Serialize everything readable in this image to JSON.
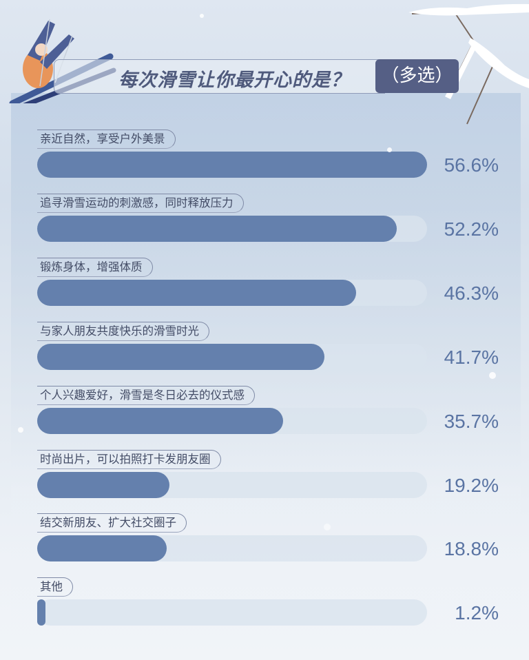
{
  "title": "每次滑雪让你最开心的是？",
  "title_tag": "（多选）",
  "colors": {
    "bar_fill": "#6480ad",
    "track": "#dae3ee",
    "title_tag_bg": "#555f85",
    "percent_text": "#5a74a3"
  },
  "chart_data": {
    "type": "bar",
    "orientation": "horizontal",
    "title": "每次滑雪让你最开心的是？（多选）",
    "categories": [
      "亲近自然，享受户外美景",
      "追寻滑雪运动的刺激感，同时释放压力",
      "锻炼身体，增强体质",
      "与家人朋友共度快乐的滑雪时光",
      "个人兴趣爱好，滑雪是冬日必去的仪式感",
      "时尚出片，可以拍照打卡发朋友圈",
      "结交新朋友、扩大社交圈子",
      "其他"
    ],
    "values": [
      56.6,
      52.2,
      46.3,
      41.7,
      35.7,
      19.2,
      18.8,
      1.2
    ],
    "labels": [
      "56.6%",
      "52.2%",
      "46.3%",
      "41.7%",
      "35.7%",
      "19.2%",
      "18.8%",
      "1.2%"
    ],
    "unit": "%",
    "xlim": [
      0,
      57
    ],
    "grid": false
  }
}
